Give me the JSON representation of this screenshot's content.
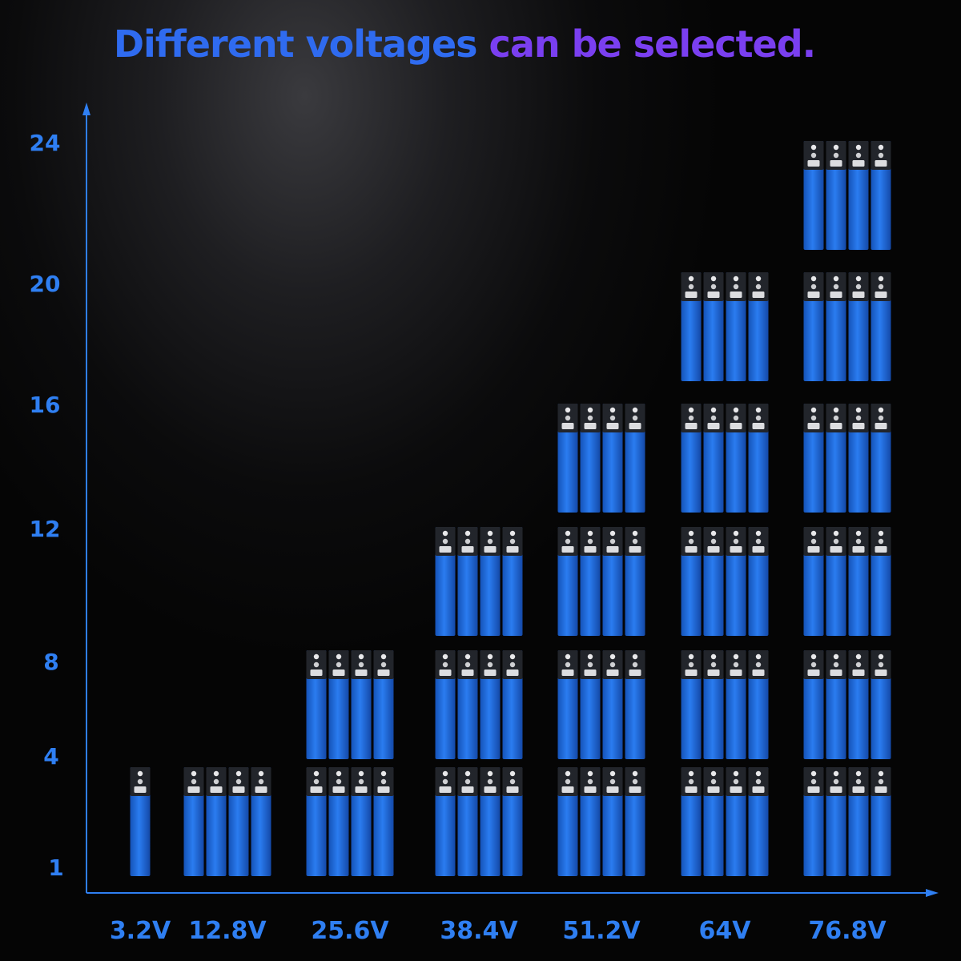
{
  "title": {
    "part1": "Different voltages",
    "part2": "can be selected."
  },
  "colors": {
    "axis": "#2f7ff2",
    "title_blue": "#2f6bf0",
    "title_purple": "#7a3ff0",
    "cell_body": "#1e6fe0",
    "cell_cap": "#22252b"
  },
  "chart_data": {
    "type": "bar",
    "yticks": [
      "1",
      "4",
      "8",
      "12",
      "16",
      "20",
      "24"
    ],
    "categories": [
      "3.2V",
      "12.8V",
      "25.6V",
      "38.4V",
      "51.2V",
      "64V",
      "76.8V"
    ],
    "values": [
      1,
      4,
      8,
      12,
      16,
      20,
      24
    ],
    "unit_note": "bars drawn as stacked battery cells; each block = 4 cells"
  }
}
